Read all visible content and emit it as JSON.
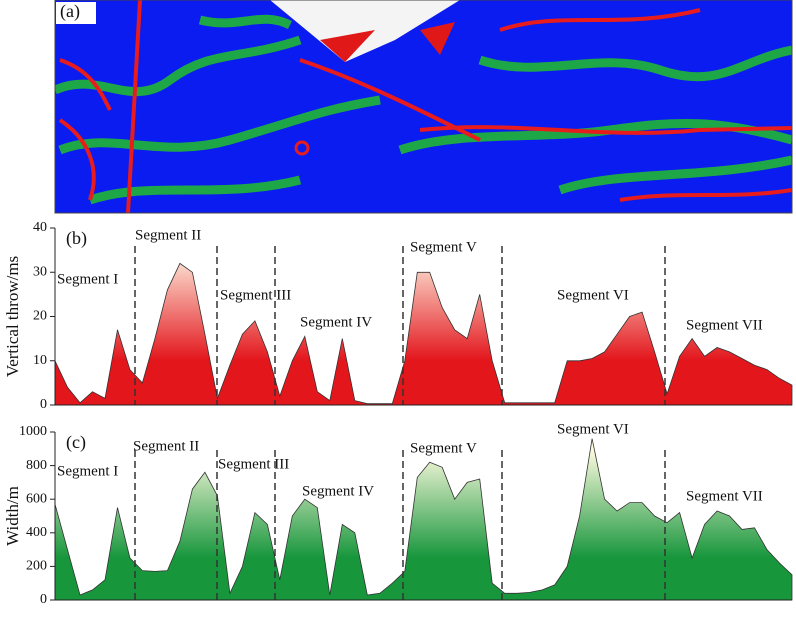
{
  "panel_a": {
    "label": "(a)"
  },
  "chart_data": [
    {
      "type": "area",
      "label": "(b)",
      "y_label": "Vertical throw/ms",
      "color": "#e3161c",
      "color_top": "#fffbea",
      "ylim": [
        0,
        40
      ],
      "yticks": [
        0,
        10,
        20,
        30,
        40
      ],
      "annotations": [
        "Segment I",
        "Segment II",
        "Segment III",
        "Segment IV",
        "Segment V",
        "Segment VI",
        "Segment VII"
      ],
      "values": [
        10,
        4,
        0.5,
        3,
        1.5,
        17,
        8,
        5,
        15,
        26,
        32,
        30,
        16,
        1.5,
        9,
        16,
        19,
        12,
        2,
        10,
        15.5,
        3,
        1,
        15,
        1,
        0.3,
        0.3,
        0.3,
        10,
        30,
        30,
        22,
        17,
        15,
        25,
        10,
        0.5,
        0.5,
        0.5,
        0.5,
        0.5,
        10,
        10,
        10.5,
        12,
        16,
        20,
        21,
        12,
        2.5,
        11,
        15,
        11,
        13,
        12,
        10.5,
        9,
        8,
        6,
        4.5
      ]
    },
    {
      "type": "area",
      "label": "(c)",
      "y_label": "Width/m",
      "color": "#17963c",
      "color_top": "#fffbe0",
      "ylim": [
        0,
        1000
      ],
      "yticks": [
        0,
        200,
        400,
        600,
        800,
        1000
      ],
      "annotations": [
        "Segment I",
        "Segment II",
        "Segment III",
        "Segment IV",
        "Segment V",
        "Segment VI",
        "Segment VII"
      ],
      "values": [
        570,
        300,
        30,
        60,
        120,
        550,
        250,
        175,
        170,
        175,
        350,
        660,
        760,
        620,
        40,
        200,
        520,
        450,
        120,
        500,
        600,
        550,
        30,
        450,
        400,
        30,
        40,
        100,
        170,
        730,
        820,
        790,
        600,
        700,
        720,
        100,
        40,
        40,
        45,
        60,
        90,
        200,
        500,
        960,
        600,
        530,
        580,
        580,
        500,
        460,
        520,
        250,
        450,
        530,
        500,
        420,
        430,
        300,
        220,
        150
      ]
    }
  ]
}
